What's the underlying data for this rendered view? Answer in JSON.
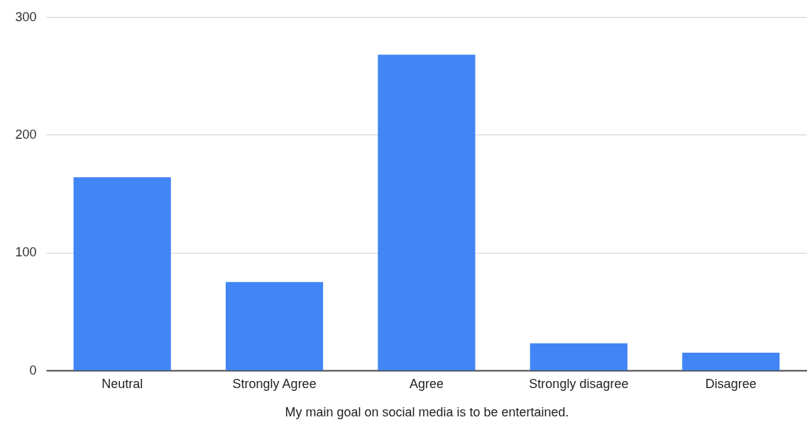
{
  "chart_data": {
    "type": "bar",
    "xlabel": "My main goal on social media is to be entertained.",
    "categories": [
      "Neutral",
      "Strongly Agree",
      "Agree",
      "Strongly disagree",
      "Disagree"
    ],
    "values": [
      164,
      75,
      268,
      23,
      15
    ],
    "color": "#4285f4",
    "ylim": [
      0,
      300
    ],
    "yticks": [
      0,
      100,
      200,
      300
    ],
    "grid": "y"
  }
}
